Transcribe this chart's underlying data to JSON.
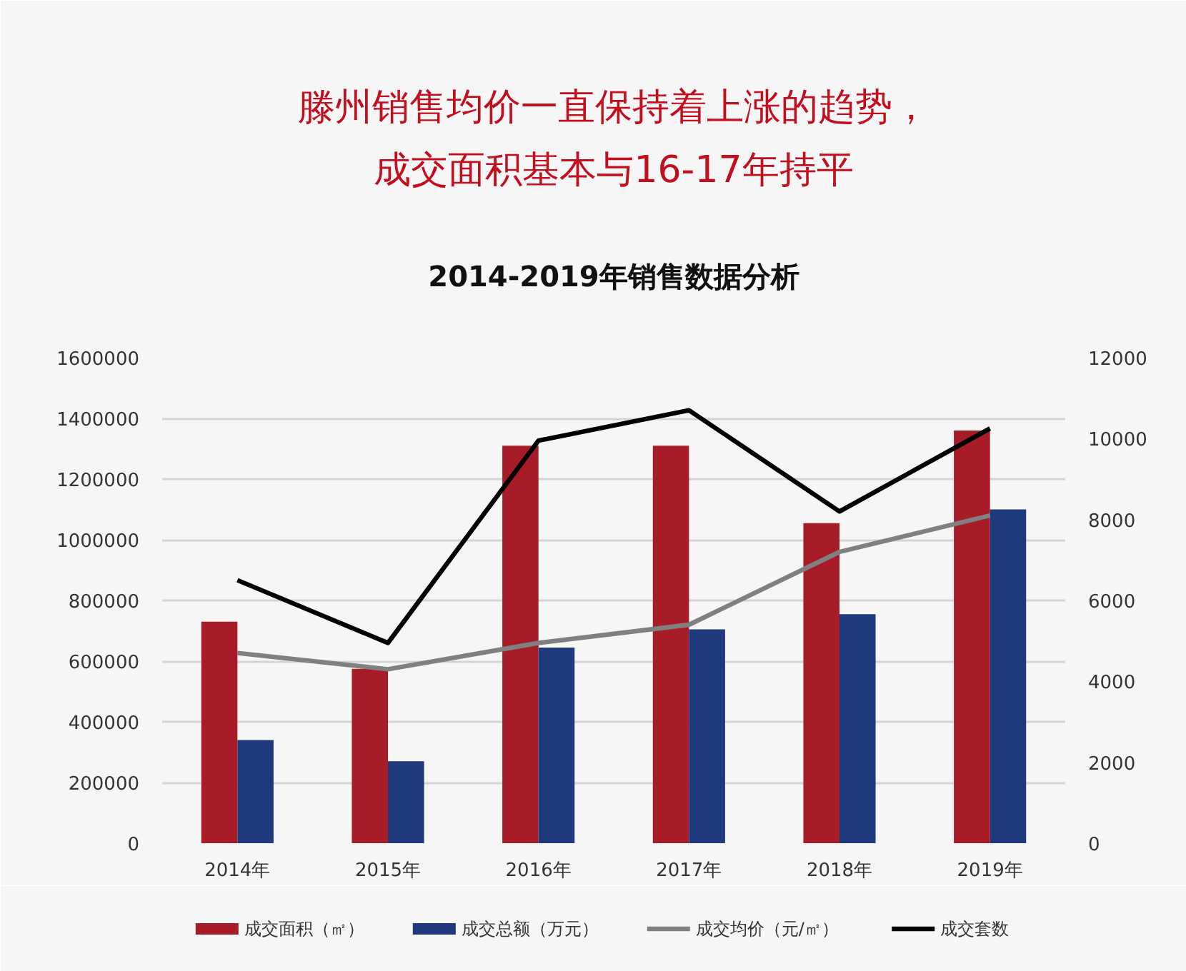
{
  "chart_data": {
    "type": "bar",
    "title": "2014-2019年销售数据分析",
    "annotations": [
      "滕州销售均价一直保持着上涨的趋势，",
      "成交面积基本与16-17年持平"
    ],
    "categories": [
      "2014年",
      "2015年",
      "2016年",
      "2017年",
      "2018年",
      "2019年"
    ],
    "series": [
      {
        "name": "成交面积（㎡）",
        "color": "#a81c28",
        "values": [
          730000,
          575000,
          1310000,
          1310000,
          1055000,
          1360000
        ]
      },
      {
        "name": "成交总额（万元）",
        "color": "#1f3a7c",
        "values": [
          340000,
          270000,
          645000,
          705000,
          755000,
          1100000
        ]
      },
      {
        "name": "成交均价（元/㎡）",
        "type": "line",
        "axis": "y2",
        "color": "#808080",
        "values": [
          4700,
          4300,
          4950,
          5400,
          7200,
          8100
        ]
      },
      {
        "name": "成交套数",
        "type": "line",
        "axis": "y2",
        "color": "#000000",
        "values": [
          6500,
          4950,
          9950,
          10700,
          8200,
          10250
        ]
      }
    ],
    "ylim": [
      0,
      1600000
    ],
    "yticks": [
      0,
      200000,
      400000,
      600000,
      800000,
      1000000,
      1200000,
      1400000,
      1600000
    ],
    "y2lim": [
      0,
      12000
    ],
    "y2ticks": [
      0,
      2000,
      4000,
      6000,
      8000,
      10000,
      12000
    ],
    "grid": "y",
    "legend": "bottom",
    "line_style": "solid"
  }
}
